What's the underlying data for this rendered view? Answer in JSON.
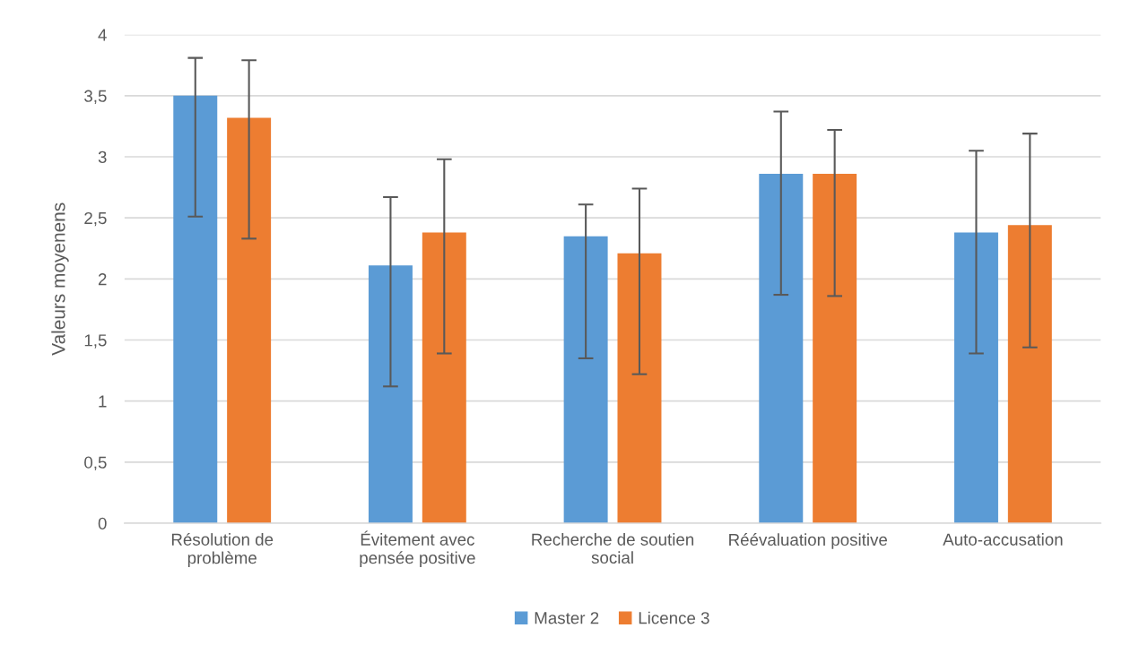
{
  "chart_data": {
    "type": "bar",
    "ylabel": "Valeurs moyenens",
    "categories": [
      "Résolution de\nproblème",
      "Évitement avec\npensée positive",
      "Recherche de soutien\nsocial",
      "Réévaluation positive",
      "Auto-accusation"
    ],
    "series": [
      {
        "name": "Master 2",
        "color": "#5b9bd5",
        "values": [
          3.5,
          2.11,
          2.35,
          2.86,
          2.38
        ],
        "errors": [
          [
            2.51,
            3.81
          ],
          [
            1.12,
            2.67
          ],
          [
            1.35,
            2.61
          ],
          [
            1.87,
            3.37
          ],
          [
            1.39,
            3.05
          ]
        ]
      },
      {
        "name": "Licence 3",
        "color": "#ed7d31",
        "values": [
          3.32,
          2.38,
          2.21,
          2.86,
          2.44
        ],
        "errors": [
          [
            2.33,
            3.79
          ],
          [
            1.39,
            2.98
          ],
          [
            1.22,
            2.74
          ],
          [
            1.86,
            3.22
          ],
          [
            1.44,
            3.19
          ]
        ]
      }
    ],
    "ylim": [
      0,
      4
    ],
    "yticks": [
      {
        "value": 0,
        "label": "0"
      },
      {
        "value": 0.5,
        "label": "0,5"
      },
      {
        "value": 1,
        "label": "1"
      },
      {
        "value": 1.5,
        "label": "1,5"
      },
      {
        "value": 2,
        "label": "2"
      },
      {
        "value": 2.5,
        "label": "2,5"
      },
      {
        "value": 3,
        "label": "3"
      },
      {
        "value": 3.5,
        "label": "3,5"
      },
      {
        "value": 4,
        "label": "4"
      }
    ],
    "grid": "y",
    "legend": "bottom"
  }
}
